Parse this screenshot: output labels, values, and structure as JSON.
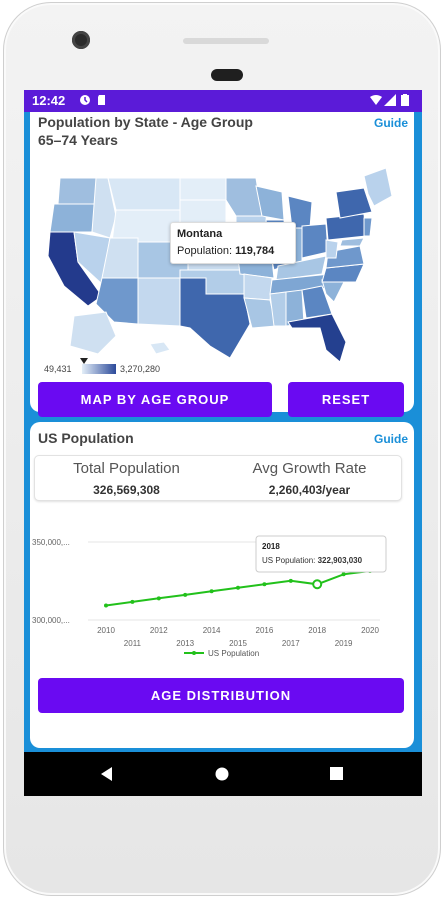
{
  "status_bar": {
    "time": "12:42"
  },
  "map_card": {
    "title_line1": "Population by State - Age Group",
    "title_line2": "65–74 Years",
    "guide_label": "Guide",
    "tooltip_state": "Montana",
    "tooltip_prefix": "Population: ",
    "tooltip_value": "119,784",
    "legend_min": "49,431",
    "legend_max": "3,270,280",
    "map_button_label": "MAP BY AGE GROUP",
    "reset_button_label": "RESET"
  },
  "population_card": {
    "title": "US Population",
    "guide_label": "Guide",
    "total_label": "Total Population",
    "total_value": "326,569,308",
    "growth_label": "Avg Growth Rate",
    "growth_value": "2,260,403/year",
    "age_button_label": "AGE DISTRIBUTION"
  },
  "chart_data": {
    "type": "line",
    "x": [
      2010,
      2011,
      2012,
      2013,
      2014,
      2015,
      2016,
      2017,
      2018,
      2019,
      2020
    ],
    "series": [
      {
        "name": "US Population",
        "values": [
          309300000,
          311600000,
          313900000,
          316100000,
          318400000,
          320700000,
          322900000,
          325100000,
          322903030,
          329300000,
          331400000
        ]
      }
    ],
    "y_tick_labels": [
      "350,000,...",
      "300,000,..."
    ],
    "ylim": [
      300000000,
      350000000
    ],
    "tooltip_title": "2018",
    "tooltip_text_prefix": "US Population: ",
    "tooltip_value": "322,903,030",
    "legend_position": "bottom",
    "line_color": "#22c11b"
  }
}
